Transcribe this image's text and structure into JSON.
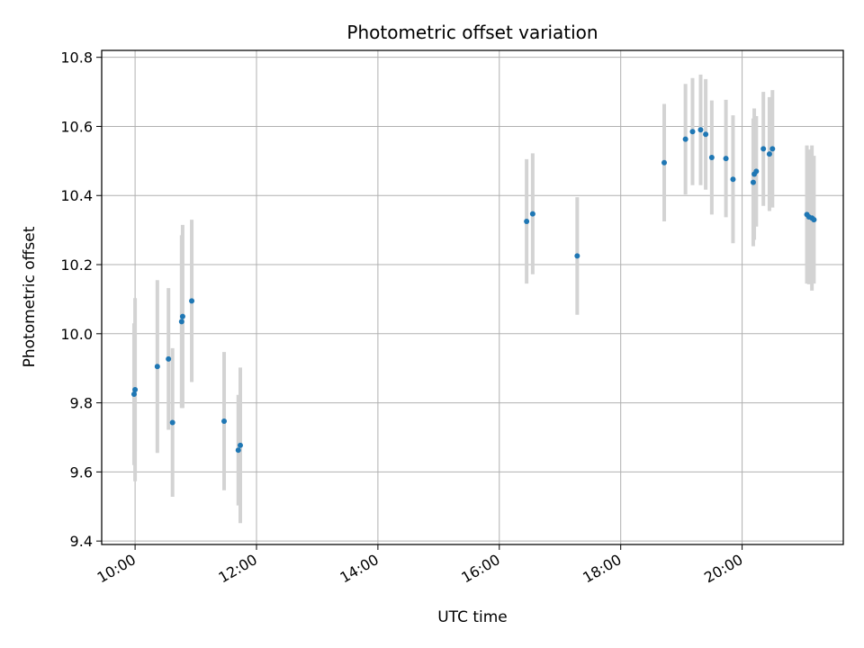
{
  "chart_data": {
    "type": "scatter",
    "title": "Photometric offset variation",
    "xlabel": "UTC time",
    "ylabel": "Photometric offset",
    "x_axis_kind": "time",
    "xlim": [
      "09:27",
      "21:40"
    ],
    "ylim": [
      9.39,
      10.82
    ],
    "xticks": [
      "10:00",
      "12:00",
      "14:00",
      "16:00",
      "18:00",
      "20:00"
    ],
    "yticks": [
      9.4,
      9.6,
      9.8,
      10.0,
      10.2,
      10.4,
      10.6,
      10.8
    ],
    "ytick_labels": [
      "9.4",
      "9.6",
      "9.8",
      "10.0",
      "10.2",
      "10.4",
      "10.6",
      "10.8"
    ],
    "grid": true,
    "point_color": "#1f77b4",
    "errorbar_color": "#d3d3d3",
    "points": [
      {
        "x": "09:59",
        "y": 9.825,
        "err": 0.205
      },
      {
        "x": "10:00",
        "y": 9.838,
        "err": 0.265
      },
      {
        "x": "10:22",
        "y": 9.905,
        "err": 0.25
      },
      {
        "x": "10:33",
        "y": 9.927,
        "err": 0.205
      },
      {
        "x": "10:37",
        "y": 9.743,
        "err": 0.215
      },
      {
        "x": "10:46",
        "y": 10.035,
        "err": 0.25
      },
      {
        "x": "10:47",
        "y": 10.05,
        "err": 0.265
      },
      {
        "x": "10:56",
        "y": 10.095,
        "err": 0.235
      },
      {
        "x": "11:28",
        "y": 9.747,
        "err": 0.2
      },
      {
        "x": "11:42",
        "y": 9.663,
        "err": 0.16
      },
      {
        "x": "11:44",
        "y": 9.677,
        "err": 0.225
      },
      {
        "x": "16:27",
        "y": 10.325,
        "err": 0.18
      },
      {
        "x": "16:33",
        "y": 10.347,
        "err": 0.175
      },
      {
        "x": "17:17",
        "y": 10.225,
        "err": 0.17
      },
      {
        "x": "18:43",
        "y": 10.495,
        "err": 0.17
      },
      {
        "x": "19:04",
        "y": 10.563,
        "err": 0.16
      },
      {
        "x": "19:11",
        "y": 10.585,
        "err": 0.155
      },
      {
        "x": "19:19",
        "y": 10.59,
        "err": 0.16
      },
      {
        "x": "19:24",
        "y": 10.577,
        "err": 0.16
      },
      {
        "x": "19:30",
        "y": 10.51,
        "err": 0.165
      },
      {
        "x": "19:44",
        "y": 10.507,
        "err": 0.17
      },
      {
        "x": "19:51",
        "y": 10.447,
        "err": 0.185
      },
      {
        "x": "20:11",
        "y": 10.438,
        "err": 0.185
      },
      {
        "x": "20:12",
        "y": 10.462,
        "err": 0.19
      },
      {
        "x": "20:14",
        "y": 10.47,
        "err": 0.16
      },
      {
        "x": "20:21",
        "y": 10.535,
        "err": 0.165
      },
      {
        "x": "20:27",
        "y": 10.52,
        "err": 0.165
      },
      {
        "x": "20:30",
        "y": 10.535,
        "err": 0.17
      },
      {
        "x": "21:04",
        "y": 10.345,
        "err": 0.2
      },
      {
        "x": "21:06",
        "y": 10.338,
        "err": 0.195
      },
      {
        "x": "21:09",
        "y": 10.335,
        "err": 0.21
      },
      {
        "x": "21:11",
        "y": 10.33,
        "err": 0.185
      }
    ]
  }
}
